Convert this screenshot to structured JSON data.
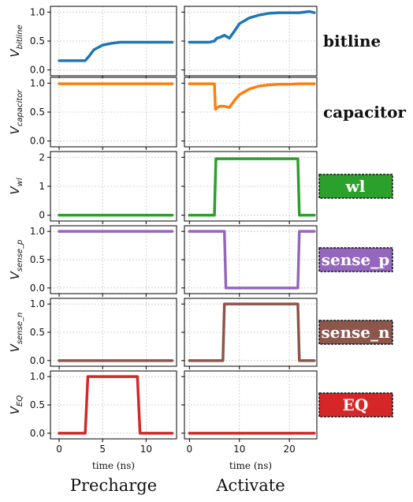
{
  "chart_data": {
    "type": "line",
    "columns": [
      {
        "title": "Precharge",
        "xlabel": "time (ns)",
        "xlim": [
          -1,
          13.5
        ],
        "xticks": [
          0,
          5,
          10
        ]
      },
      {
        "title": "Activate",
        "xlabel": "time (ns)",
        "xlim": [
          -1,
          25.5
        ],
        "xticks": [
          0,
          10,
          20
        ]
      }
    ],
    "rows": [
      {
        "key": "bitline",
        "label": "bitline",
        "ylabel_main": "V",
        "ylabel_sub": "bitline",
        "color": "#1f77b4",
        "boxed": false,
        "ylim": [
          -0.1,
          1.1
        ],
        "yticks": [
          0.0,
          0.5,
          1.0
        ],
        "ytick_labels": [
          "0.0",
          "0.5",
          "1.0"
        ],
        "precharge": {
          "x": [
            0,
            1,
            2,
            3,
            3.5,
            4,
            5,
            6,
            7,
            8,
            9,
            10,
            11,
            12,
            13
          ],
          "y": [
            0.16,
            0.16,
            0.16,
            0.16,
            0.25,
            0.35,
            0.43,
            0.46,
            0.48,
            0.48,
            0.48,
            0.48,
            0.48,
            0.48,
            0.48
          ]
        },
        "activate": {
          "x": [
            0,
            2,
            4,
            5,
            5.5,
            6,
            7,
            8,
            9,
            10,
            12,
            14,
            16,
            18,
            20,
            22,
            24,
            25
          ],
          "y": [
            0.48,
            0.48,
            0.48,
            0.5,
            0.55,
            0.56,
            0.6,
            0.55,
            0.67,
            0.8,
            0.9,
            0.95,
            0.98,
            0.99,
            0.99,
            0.99,
            1.01,
            0.99
          ]
        }
      },
      {
        "key": "capacitor",
        "label": "capacitor",
        "ylabel_main": "V",
        "ylabel_sub": "capacitor",
        "color": "#ff7f0e",
        "boxed": false,
        "ylim": [
          -0.1,
          1.1
        ],
        "yticks": [
          0.0,
          0.5,
          1.0
        ],
        "ytick_labels": [
          "0.0",
          "0.5",
          "1.0"
        ],
        "precharge": {
          "x": [
            0,
            13
          ],
          "y": [
            0.99,
            0.99
          ]
        },
        "activate": {
          "x": [
            0,
            2,
            4,
            5,
            5.2,
            6,
            7,
            8,
            9,
            10,
            12,
            14,
            16,
            18,
            20,
            22,
            24,
            25
          ],
          "y": [
            0.99,
            0.99,
            0.99,
            0.99,
            0.55,
            0.6,
            0.6,
            0.58,
            0.7,
            0.8,
            0.9,
            0.95,
            0.97,
            0.98,
            0.98,
            0.99,
            0.99,
            0.99
          ]
        }
      },
      {
        "key": "wl",
        "label": "wl",
        "ylabel_main": "V",
        "ylabel_sub": "wl",
        "color": "#2ca02c",
        "boxed": true,
        "ylim": [
          -0.2,
          2.2
        ],
        "yticks": [
          0,
          1,
          2
        ],
        "ytick_labels": [
          "0",
          "1",
          "2"
        ],
        "precharge": {
          "x": [
            0,
            13
          ],
          "y": [
            0,
            0
          ]
        },
        "activate": {
          "x": [
            0,
            5,
            5.3,
            21.7,
            22,
            25
          ],
          "y": [
            0,
            0,
            1.95,
            1.95,
            0,
            0
          ]
        }
      },
      {
        "key": "sense_p",
        "label": "sense_p",
        "ylabel_main": "V",
        "ylabel_sub": "sense_p",
        "color": "#9467bd",
        "boxed": true,
        "ylim": [
          -0.1,
          1.1
        ],
        "yticks": [
          0.0,
          0.5,
          1.0
        ],
        "ytick_labels": [
          "0.0",
          "0.5",
          "1.0"
        ],
        "precharge": {
          "x": [
            0,
            13
          ],
          "y": [
            1,
            1
          ]
        },
        "activate": {
          "x": [
            0,
            7,
            7.3,
            21.7,
            22,
            25
          ],
          "y": [
            1,
            1,
            0,
            0,
            1,
            1
          ]
        }
      },
      {
        "key": "sense_n",
        "label": "sense_n",
        "ylabel_main": "V",
        "ylabel_sub": "sense_n",
        "color": "#8c564b",
        "boxed": true,
        "ylim": [
          -0.1,
          1.1
        ],
        "yticks": [
          0.0,
          0.5,
          1.0
        ],
        "ytick_labels": [
          "0.0",
          "0.5",
          "1.0"
        ],
        "precharge": {
          "x": [
            0,
            13
          ],
          "y": [
            0,
            0
          ]
        },
        "activate": {
          "x": [
            0,
            6.7,
            7,
            21.7,
            22,
            25
          ],
          "y": [
            0,
            0,
            1,
            1,
            0,
            0
          ]
        }
      },
      {
        "key": "EQ",
        "label": "EQ",
        "ylabel_main": "V",
        "ylabel_sub": "EQ",
        "color": "#d62728",
        "boxed": true,
        "ylim": [
          -0.1,
          1.1
        ],
        "yticks": [
          0.0,
          0.5,
          1.0
        ],
        "ytick_labels": [
          "0.0",
          "0.5",
          "1.0"
        ],
        "precharge": {
          "x": [
            0,
            3,
            3.3,
            9,
            9.3,
            13
          ],
          "y": [
            0,
            0,
            1,
            1,
            0,
            0
          ]
        },
        "activate": {
          "x": [
            0,
            25
          ],
          "y": [
            0,
            0
          ]
        }
      }
    ],
    "grid": true
  }
}
